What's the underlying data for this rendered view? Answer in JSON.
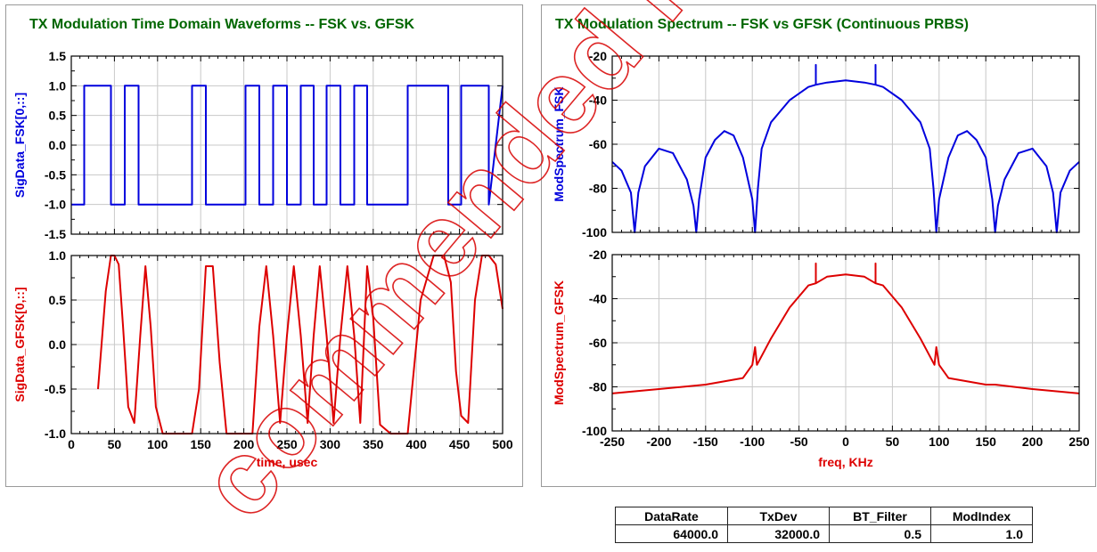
{
  "chart_data": [
    {
      "type": "line",
      "title": "TX Modulation Time Domain Waveforms -- FSK vs. GFSK",
      "xlabel": "time, usec",
      "x_ticks": [
        "0",
        "50",
        "100",
        "150",
        "200",
        "250",
        "300",
        "350",
        "400",
        "450",
        "500"
      ],
      "xlim": [
        0,
        500
      ],
      "grid": true,
      "series_color_top": "#0000dd",
      "series_color_bottom": "#dd0000",
      "title_color": "#006600",
      "subplots": [
        {
          "ylabel": "SigData_FSK[0,::]",
          "ylim": [
            -1.5,
            1.5
          ],
          "y_ticks": [
            "1.5",
            "1.0",
            "0.5",
            "0.0",
            "-0.5",
            "-1.0",
            "-1.5"
          ],
          "series": [
            {
              "x": [
                0,
                15,
                15,
                46,
                46,
                62,
                62,
                78,
                78,
                140,
                140,
                156,
                156,
                202,
                202,
                218,
                218,
                234,
                234,
                250,
                250,
                266,
                266,
                281,
                281,
                296,
                296,
                312,
                312,
                328,
                328,
                343,
                343,
                390,
                390,
                437,
                437,
                452,
                452,
                484,
                484,
                500
              ],
              "y": [
                -1,
                -1,
                1,
                1,
                -1,
                -1,
                1,
                1,
                -1,
                -1,
                1,
                1,
                -1,
                -1,
                1,
                1,
                -1,
                -1,
                1,
                1,
                -1,
                -1,
                1,
                1,
                -1,
                -1,
                1,
                1,
                -1,
                -1,
                1,
                1,
                -1,
                -1,
                1,
                1,
                -1,
                -1,
                1,
                1,
                -1,
                1
              ]
            }
          ]
        },
        {
          "ylabel": "SigData_GFSK[0,::]",
          "ylim": [
            -1.0,
            1.0
          ],
          "y_ticks": [
            "1.0",
            "0.5",
            "0.0",
            "-0.5",
            "-1.0"
          ],
          "series": [
            {
              "x": [
                31,
                40,
                46,
                50,
                55,
                60,
                66,
                73,
                80,
                86,
                92,
                98,
                106,
                120,
                140,
                148,
                156,
                164,
                172,
                180,
                190,
                210,
                218,
                226,
                234,
                242,
                250,
                258,
                266,
                274,
                281,
                288,
                296,
                304,
                312,
                320,
                328,
                335,
                343,
                350,
                358,
                370,
                390,
                405,
                420,
                432,
                440,
                446,
                452,
                460,
                468,
                476,
                484,
                492,
                500
              ],
              "y": [
                -0.5,
                0.6,
                1.0,
                1.0,
                0.9,
                0.2,
                -0.7,
                -0.88,
                0.1,
                0.88,
                0.2,
                -0.7,
                -1.0,
                -1.0,
                -1.0,
                -0.5,
                0.88,
                0.88,
                -0.2,
                -1.0,
                -1.0,
                -1.0,
                0.2,
                0.88,
                0.1,
                -0.88,
                0.1,
                0.88,
                0.1,
                -0.88,
                0.1,
                0.88,
                0.1,
                -0.88,
                0.1,
                0.88,
                0.1,
                -0.88,
                0.88,
                0.3,
                -0.9,
                -1.0,
                -1.0,
                0.5,
                1.0,
                1.0,
                0.7,
                -0.3,
                -0.8,
                -0.88,
                0.5,
                1.0,
                1.0,
                0.9,
                0.4
              ]
            }
          ]
        }
      ]
    },
    {
      "type": "line",
      "title": "TX Modulation Spectrum -- FSK vs GFSK (Continuous PRBS)",
      "xlabel": "freq, KHz",
      "x_ticks": [
        "-250",
        "-200",
        "-150",
        "-100",
        "-50",
        "0",
        "50",
        "100",
        "150",
        "200",
        "250"
      ],
      "xlim": [
        -250,
        250
      ],
      "grid": true,
      "subplots": [
        {
          "ylabel": "ModSpectrum_FSK",
          "ylim": [
            -100,
            -20
          ],
          "y_ticks": [
            "-20",
            "-40",
            "-60",
            "-80",
            "-100"
          ],
          "series": [
            {
              "x": [
                -250,
                -240,
                -230,
                -226,
                -222,
                -215,
                -200,
                -185,
                -170,
                -163,
                -160,
                -157,
                -150,
                -140,
                -130,
                -120,
                -110,
                -100,
                -97,
                -94,
                -90,
                -80,
                -60,
                -40,
                -32,
                -32,
                -32,
                -20,
                0,
                20,
                32,
                32,
                32,
                40,
                60,
                80,
                90,
                94,
                97,
                100,
                110,
                120,
                130,
                140,
                150,
                157,
                160,
                163,
                170,
                185,
                200,
                215,
                222,
                226,
                230,
                240,
                250
              ],
              "y": [
                -68,
                -72,
                -82,
                -100,
                -82,
                -70,
                -62,
                -64,
                -76,
                -88,
                -100,
                -85,
                -66,
                -58,
                -54,
                -56,
                -66,
                -85,
                -100,
                -80,
                -62,
                -50,
                -40,
                -34,
                -33,
                -24,
                -33,
                -32,
                -31,
                -32,
                -33,
                -24,
                -33,
                -34,
                -40,
                -50,
                -62,
                -80,
                -100,
                -85,
                -66,
                -56,
                -54,
                -58,
                -66,
                -85,
                -100,
                -88,
                -76,
                -64,
                -62,
                -70,
                -82,
                -100,
                -82,
                -72,
                -68
              ]
            }
          ]
        },
        {
          "ylabel": "ModSpectrum_GFSK",
          "ylim": [
            -100,
            -20
          ],
          "y_ticks": [
            "-20",
            "-40",
            "-60",
            "-80",
            "-100"
          ],
          "series": [
            {
              "x": [
                -250,
                -200,
                -150,
                -110,
                -100,
                -97,
                -95,
                -80,
                -60,
                -40,
                -32,
                -32,
                -32,
                -20,
                0,
                20,
                32,
                32,
                32,
                40,
                60,
                80,
                95,
                97,
                100,
                110,
                150,
                160,
                200,
                250
              ],
              "y": [
                -83,
                -81,
                -79,
                -76,
                -70,
                -62,
                -70,
                -58,
                -44,
                -34,
                -33,
                -24,
                -33,
                -30,
                -29,
                -30,
                -33,
                -24,
                -33,
                -34,
                -44,
                -58,
                -70,
                -62,
                -70,
                -76,
                -79,
                -79,
                -81,
                -83
              ]
            }
          ]
        }
      ]
    }
  ],
  "table": {
    "headers": [
      "DataRate",
      "TxDev",
      "BT_Filter",
      "ModIndex"
    ],
    "values": [
      "64000.0",
      "32000.0",
      "0.5",
      "1.0"
    ]
  },
  "watermark": {
    "text": "commended for",
    "color": "#d80000"
  }
}
